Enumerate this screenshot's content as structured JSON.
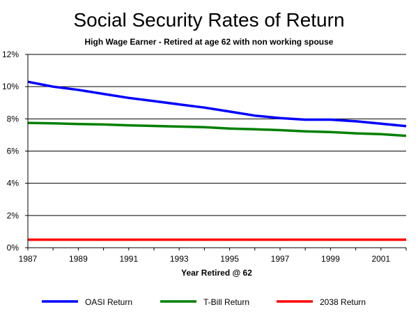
{
  "chart_data": {
    "type": "line",
    "title": "Social Security Rates of Return",
    "subtitle": "High Wage Earner - Retired at age 62 with non working spouse",
    "xlabel": "Year Retired @ 62",
    "ylabel": "",
    "xlim": [
      1987,
      2002
    ],
    "ylim": [
      0,
      12
    ],
    "x_ticks": [
      1987,
      1989,
      1991,
      1993,
      1995,
      1997,
      1999,
      2001
    ],
    "x_tick_labels": [
      "1987",
      "1989",
      "1991",
      "1993",
      "1995",
      "1997",
      "1999",
      "2001"
    ],
    "y_ticks": [
      0,
      2,
      4,
      6,
      8,
      10,
      12
    ],
    "y_tick_labels": [
      "0%",
      "2%",
      "4%",
      "6%",
      "8%",
      "10%",
      "12%"
    ],
    "grid": "horizontal",
    "legend_position": "bottom",
    "x": [
      1987,
      1988,
      1989,
      1990,
      1991,
      1992,
      1993,
      1994,
      1995,
      1996,
      1997,
      1998,
      1999,
      2000,
      2001,
      2002
    ],
    "series": [
      {
        "name": "OASI Return",
        "color": "#0000ff",
        "values": [
          10.3,
          10.0,
          9.8,
          9.55,
          9.3,
          9.1,
          8.9,
          8.7,
          8.45,
          8.2,
          8.05,
          7.95,
          7.95,
          7.85,
          7.7,
          7.55
        ]
      },
      {
        "name": "T-Bill Return",
        "color": "#008000",
        "values": [
          7.75,
          7.72,
          7.68,
          7.65,
          7.6,
          7.56,
          7.52,
          7.48,
          7.4,
          7.35,
          7.3,
          7.22,
          7.18,
          7.1,
          7.05,
          6.95
        ]
      },
      {
        "name": "2038 Return",
        "color": "#ff0000",
        "values": [
          0.5,
          0.5,
          0.5,
          0.5,
          0.5,
          0.5,
          0.5,
          0.5,
          0.5,
          0.5,
          0.5,
          0.5,
          0.5,
          0.5,
          0.5,
          0.5
        ]
      }
    ]
  }
}
